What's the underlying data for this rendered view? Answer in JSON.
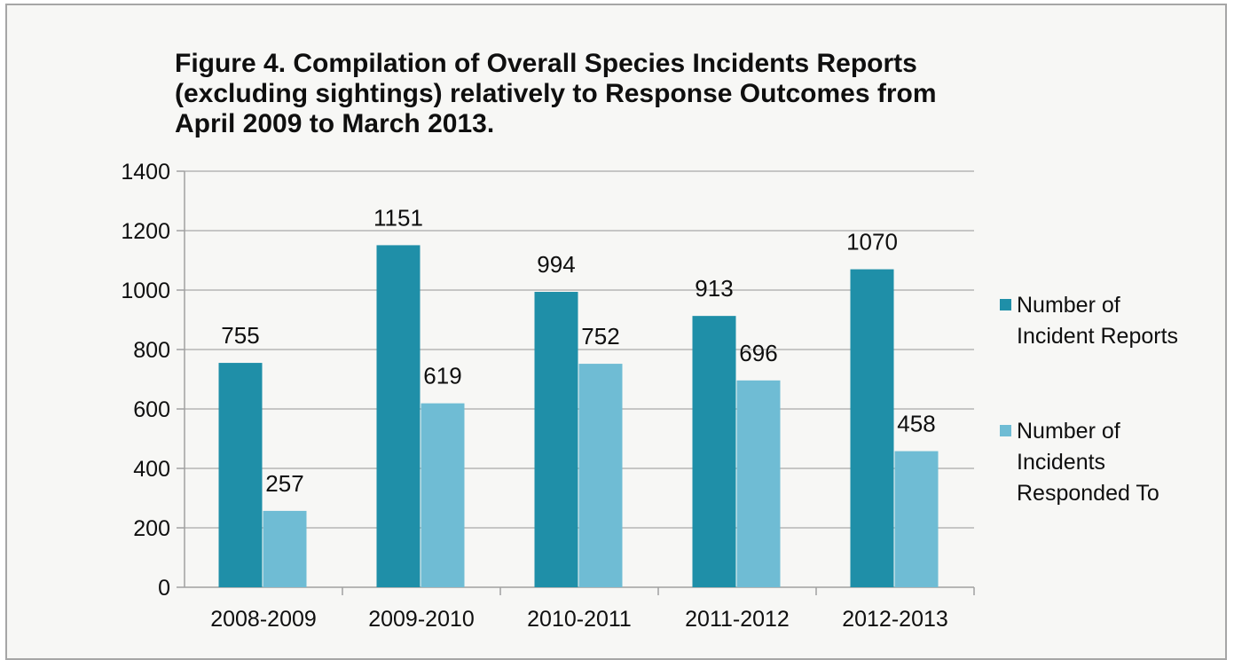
{
  "chart_data": {
    "type": "bar",
    "title": "Figure 4. Compilation of Overall Species Incidents Reports (excluding sightings) relatively to Response Outcomes from April 2009 to March 2013.",
    "title_lines": [
      "Figure 4. Compilation of Overall Species Incidents Reports",
      "(excluding sightings) relatively to Response Outcomes from",
      "April 2009 to March 2013."
    ],
    "xlabel": "",
    "ylabel": "",
    "categories": [
      "2008-2009",
      "2009-2010",
      "2010-2011",
      "2011-2012",
      "2012-2013"
    ],
    "series": [
      {
        "name": "Number of Incident Reports",
        "legend_lines": [
          "Number of",
          "Incident Reports"
        ],
        "color": "#1f8fa8",
        "values": [
          755,
          1151,
          994,
          913,
          1070
        ]
      },
      {
        "name": "Number of Incidents Responded To",
        "legend_lines": [
          "Number of",
          "Incidents",
          "Responded To"
        ],
        "color": "#6fbcd4",
        "values": [
          257,
          619,
          752,
          696,
          458
        ]
      }
    ],
    "ylim": [
      0,
      1400
    ],
    "yticks": [
      0,
      200,
      400,
      600,
      800,
      1000,
      1200,
      1400
    ],
    "grid": true,
    "legend_position": "right",
    "data_labels": true
  },
  "colors": {
    "background": "#f7f7f5",
    "gridline": "#b5b5b5",
    "axis": "#a0a0a0",
    "text": "#0f0f0f"
  }
}
